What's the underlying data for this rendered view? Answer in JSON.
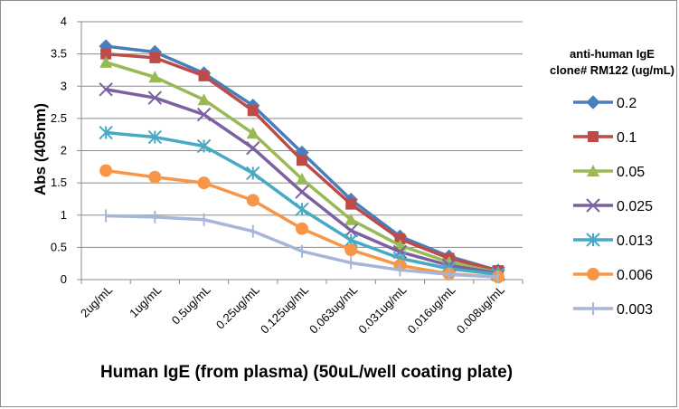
{
  "chart_data": {
    "type": "line",
    "title": "",
    "xlabel": "Human IgE (from plasma) (50uL/well coating plate)",
    "ylabel": "Abs (405nm)",
    "ylim": [
      0,
      4
    ],
    "yticks": [
      "0",
      "0.5",
      "1",
      "1.5",
      "2",
      "2.5",
      "3",
      "3.5",
      "4"
    ],
    "grid": "horizontal",
    "legend_placement": "right",
    "legend_title": [
      "anti-human IgE",
      "clone# RM122 (ug/mL)"
    ],
    "categories": [
      "2ug/mL",
      "1ug/mL",
      "0.5ug/mL",
      "0.25ug/mL",
      "0.125ug/mL",
      "0.063ug/mL",
      "0.031ug/mL",
      "0.016ug/mL",
      "0.008ug/mL"
    ],
    "series": [
      {
        "name": "0.2",
        "color": "#4a7ebb",
        "marker": "diamond",
        "values": [
          3.62,
          3.53,
          3.2,
          2.7,
          1.97,
          1.24,
          0.67,
          0.36,
          0.14
        ]
      },
      {
        "name": "0.1",
        "color": "#be4b48",
        "marker": "square",
        "values": [
          3.5,
          3.44,
          3.16,
          2.62,
          1.85,
          1.17,
          0.63,
          0.33,
          0.14
        ]
      },
      {
        "name": "0.05",
        "color": "#98b954",
        "marker": "triangle",
        "values": [
          3.37,
          3.14,
          2.79,
          2.27,
          1.56,
          0.93,
          0.53,
          0.27,
          0.11
        ]
      },
      {
        "name": "0.025",
        "color": "#7d60a0",
        "marker": "x",
        "values": [
          2.95,
          2.82,
          2.56,
          2.04,
          1.36,
          0.76,
          0.43,
          0.22,
          0.1
        ]
      },
      {
        "name": "0.013",
        "color": "#46aac5",
        "marker": "star",
        "values": [
          2.28,
          2.21,
          2.07,
          1.65,
          1.09,
          0.61,
          0.33,
          0.17,
          0.08
        ]
      },
      {
        "name": "0.006",
        "color": "#f79646",
        "marker": "circle",
        "values": [
          1.69,
          1.59,
          1.5,
          1.23,
          0.79,
          0.46,
          0.22,
          0.09,
          0.04
        ]
      },
      {
        "name": "0.003",
        "color": "#a5b6d8",
        "marker": "plus",
        "values": [
          0.99,
          0.97,
          0.93,
          0.75,
          0.44,
          0.26,
          0.15,
          0.08,
          0.04
        ]
      }
    ]
  }
}
